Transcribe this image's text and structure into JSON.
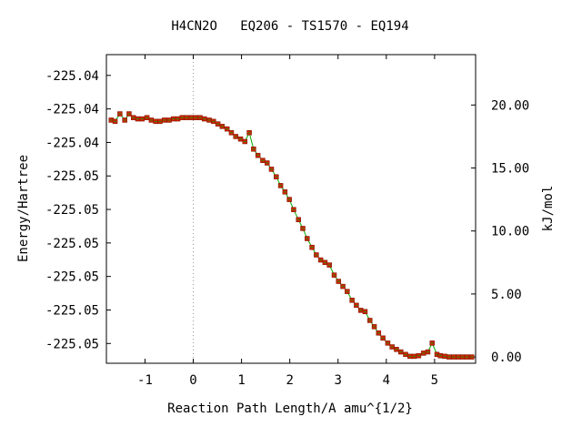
{
  "chart_data": {
    "type": "line",
    "title": "H4CN2O   EQ206 - TS1570 - EQ194",
    "xlabel": "Reaction Path Length/A amu^{1/2}",
    "ylabel": "Energy/Hartree",
    "y2label": "kJ/mol",
    "xlim": [
      -1.8,
      5.85
    ],
    "ylim": [
      -0.5,
      24.0
    ],
    "x_ticks": [
      -1,
      0,
      1,
      2,
      3,
      4,
      5
    ],
    "left_tick_labels": [
      "-225.04",
      "-225.04",
      "-225.04",
      "-225.05",
      "-225.05",
      "-225.05",
      "-225.05",
      "-225.05",
      "-225.05"
    ],
    "left_tick_kj": [
      22.35,
      19.69,
      17.03,
      14.37,
      11.71,
      9.05,
      6.39,
      3.73,
      1.07
    ],
    "right_ticks": [
      {
        "label": "0.00",
        "value": 0
      },
      {
        "label": "5.00",
        "value": 5
      },
      {
        "label": "10.00",
        "value": 10
      },
      {
        "label": "15.00",
        "value": 15
      },
      {
        "label": "20.00",
        "value": 20
      }
    ],
    "ts_marker_x": 0,
    "grid": false,
    "line_color": "#00aa00",
    "marker_color": "#cc2200",
    "series": [
      {
        "x": [
          -1.7,
          -1.62,
          -1.52,
          -1.42,
          -1.33,
          -1.24,
          -1.15,
          -1.06,
          -0.96,
          -0.87,
          -0.78,
          -0.69,
          -0.6,
          -0.5,
          -0.41,
          -0.32,
          -0.23,
          -0.14,
          -0.04,
          0.05,
          0.14,
          0.23,
          0.33,
          0.42,
          0.51,
          0.6,
          0.7,
          0.79,
          0.88,
          0.98,
          1.07,
          1.16,
          1.25,
          1.34,
          1.44,
          1.53,
          1.62,
          1.72,
          1.81,
          1.9,
          1.99,
          2.08,
          2.18,
          2.27,
          2.36,
          2.46,
          2.55,
          2.64,
          2.73,
          2.82,
          2.92,
          3.01,
          3.1,
          3.19,
          3.29,
          3.38,
          3.47,
          3.56,
          3.66,
          3.75,
          3.84,
          3.93,
          4.03,
          4.12,
          4.21,
          4.3,
          4.4,
          4.49,
          4.58,
          4.67,
          4.77,
          4.86,
          4.95,
          5.05,
          5.12,
          5.21,
          5.3,
          5.4,
          5.49,
          5.58,
          5.67,
          5.77
        ],
        "y": [
          18.8,
          18.7,
          19.3,
          18.8,
          19.3,
          19.0,
          18.9,
          18.9,
          19.0,
          18.8,
          18.7,
          18.7,
          18.8,
          18.8,
          18.9,
          18.9,
          19.0,
          19.0,
          19.0,
          19.0,
          19.0,
          18.9,
          18.8,
          18.7,
          18.5,
          18.3,
          18.1,
          17.8,
          17.5,
          17.3,
          17.1,
          17.8,
          16.5,
          16.0,
          15.6,
          15.4,
          14.9,
          14.3,
          13.6,
          13.1,
          12.5,
          11.7,
          10.9,
          10.2,
          9.4,
          8.7,
          8.1,
          7.7,
          7.5,
          7.3,
          6.5,
          6.0,
          5.6,
          5.2,
          4.5,
          4.1,
          3.7,
          3.6,
          2.9,
          2.4,
          1.9,
          1.5,
          1.1,
          0.8,
          0.6,
          0.4,
          0.2,
          0.05,
          0.05,
          0.1,
          0.3,
          0.4,
          1.1,
          0.2,
          0.1,
          0.05,
          0.0,
          0.0,
          0.0,
          0.0,
          0.0,
          0.0
        ]
      }
    ]
  }
}
